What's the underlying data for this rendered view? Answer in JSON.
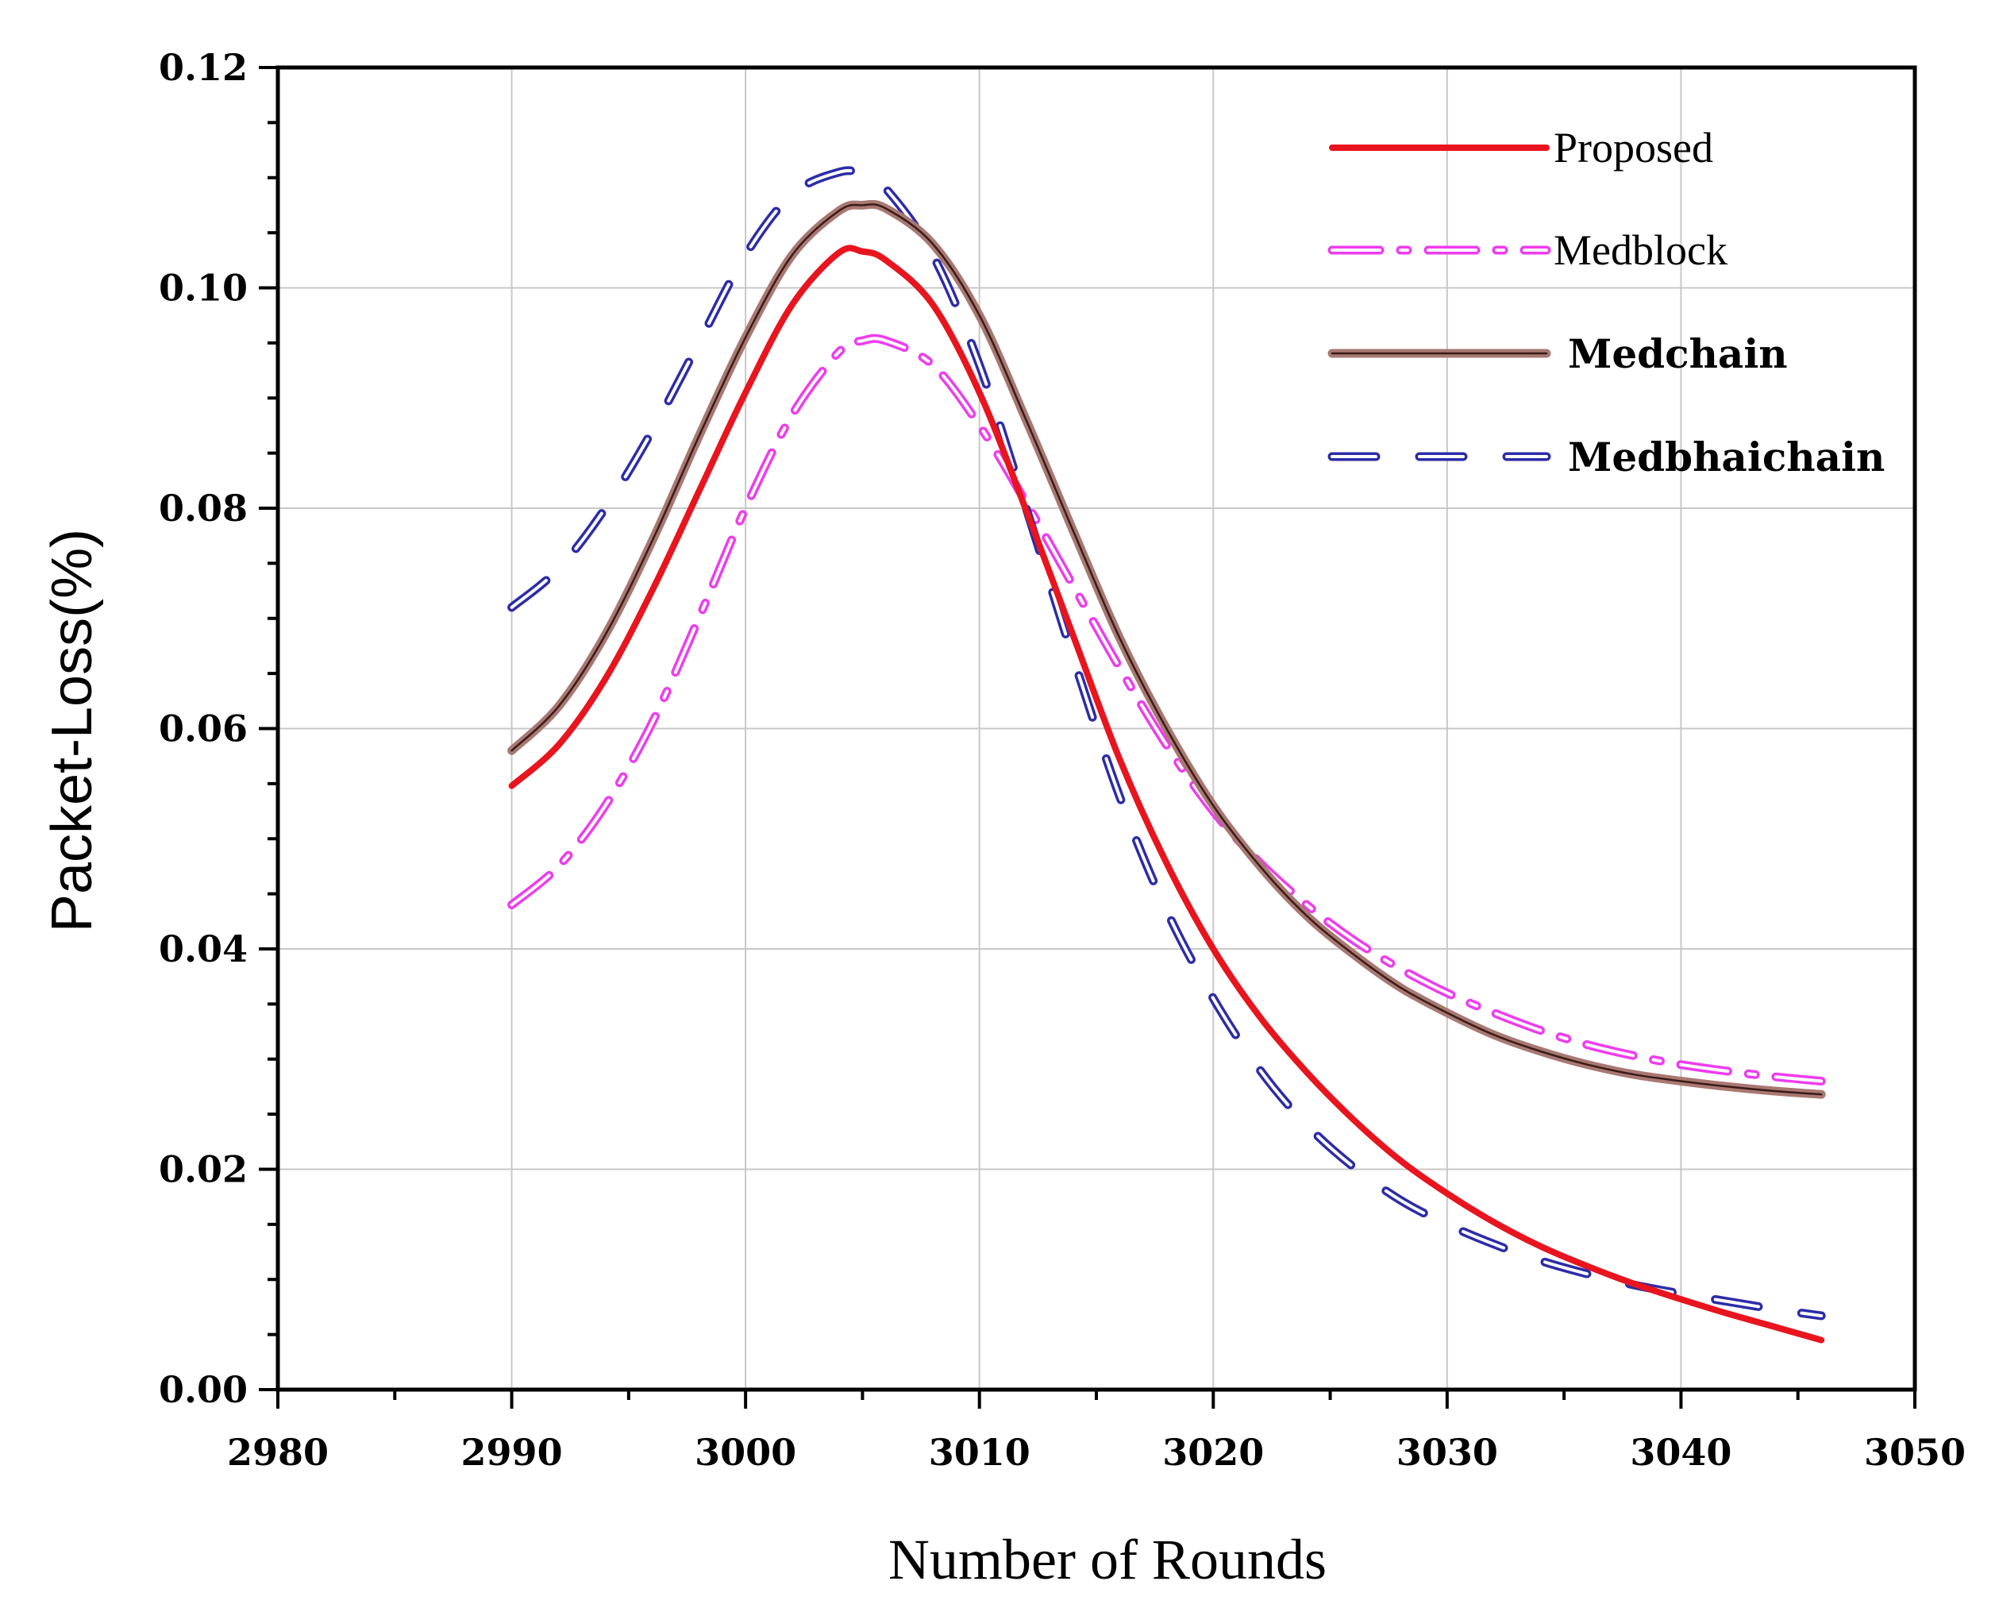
{
  "chart_data": {
    "type": "line",
    "title": "",
    "xlabel": "Number of Rounds",
    "ylabel": "Packet-Loss(%)",
    "xlim": [
      2980,
      3050
    ],
    "ylim": [
      0,
      0.12
    ],
    "x_ticks": [
      "2980",
      "2990",
      "3000",
      "3010",
      "3020",
      "3030",
      "3040",
      "3050"
    ],
    "y_ticks": [
      "0.00",
      "0.02",
      "0.04",
      "0.06",
      "0.08",
      "0.10",
      "0.12"
    ],
    "grid": true,
    "legend_position": "top-right",
    "x": [
      2990,
      2992,
      2994,
      2996,
      2998,
      3000,
      3002,
      3004,
      3005,
      3006,
      3008,
      3010,
      3012,
      3014,
      3016,
      3018,
      3020,
      3022,
      3024,
      3026,
      3028,
      3030,
      3032,
      3034,
      3036,
      3038,
      3040,
      3042,
      3044,
      3046
    ],
    "series": [
      {
        "name": "Proposed",
        "color": "#e8141e",
        "style": "solid",
        "values": [
          0.0548,
          0.0585,
          0.0645,
          0.0725,
          0.0815,
          0.0905,
          0.0985,
          0.1032,
          0.1033,
          0.1025,
          0.0985,
          0.0905,
          0.0798,
          0.0685,
          0.0572,
          0.0478,
          0.04,
          0.0338,
          0.0288,
          0.0245,
          0.0208,
          0.0178,
          0.0152,
          0.013,
          0.0112,
          0.0096,
          0.0082,
          0.0069,
          0.0057,
          0.0045
        ]
      },
      {
        "name": "Medblock",
        "color": "#ee3cee",
        "style": "dashdot",
        "values": [
          0.044,
          0.0475,
          0.053,
          0.0605,
          0.07,
          0.08,
          0.0885,
          0.0942,
          0.0952,
          0.0952,
          0.093,
          0.0875,
          0.0805,
          0.073,
          0.0655,
          0.0585,
          0.0525,
          0.0478,
          0.044,
          0.0408,
          0.0382,
          0.036,
          0.0342,
          0.0326,
          0.0313,
          0.0303,
          0.0295,
          0.0289,
          0.0284,
          0.028
        ]
      },
      {
        "name": "Medchain",
        "color": "#a87872",
        "style": "double",
        "values": [
          0.058,
          0.062,
          0.0685,
          0.077,
          0.0865,
          0.0955,
          0.103,
          0.107,
          0.1075,
          0.1072,
          0.104,
          0.0975,
          0.088,
          0.078,
          0.0682,
          0.06,
          0.053,
          0.0475,
          0.043,
          0.0395,
          0.0365,
          0.0342,
          0.0322,
          0.0307,
          0.0295,
          0.0286,
          0.028,
          0.0275,
          0.0271,
          0.0268
        ]
      },
      {
        "name": "Medbhaichain",
        "color": "#2c2ca8",
        "style": "dashed",
        "values": [
          0.071,
          0.0745,
          0.08,
          0.087,
          0.095,
          0.103,
          0.1085,
          0.1105,
          0.1103,
          0.109,
          0.103,
          0.093,
          0.08,
          0.0665,
          0.0538,
          0.0435,
          0.0355,
          0.029,
          0.024,
          0.0202,
          0.0172,
          0.015,
          0.0132,
          0.0117,
          0.0105,
          0.0095,
          0.0087,
          0.008,
          0.0073,
          0.0067
        ]
      }
    ]
  }
}
